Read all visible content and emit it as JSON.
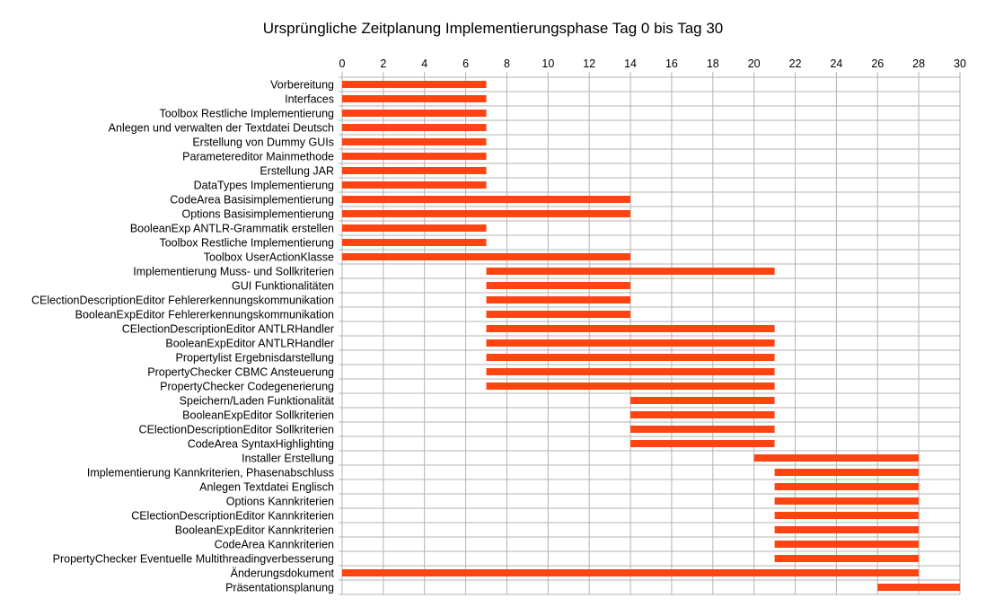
{
  "chart_data": {
    "type": "bar",
    "orientation": "horizontal-gantt",
    "title": "Ursprüngliche Zeitplanung Implementierungsphase Tag 0 bis Tag 30",
    "xlabel": "",
    "ylabel": "",
    "xlim": [
      0,
      30
    ],
    "xticks": [
      0,
      2,
      4,
      6,
      8,
      10,
      12,
      14,
      16,
      18,
      20,
      22,
      24,
      26,
      28,
      30
    ],
    "x_axis_position": "top",
    "grid": true,
    "legend": "none",
    "bar_color": "#ff4411",
    "tasks": [
      {
        "label": "Vorbereitung",
        "start": 0,
        "end": 7
      },
      {
        "label": "Interfaces",
        "start": 0,
        "end": 7
      },
      {
        "label": "Toolbox Restliche Implementierung",
        "start": 0,
        "end": 7
      },
      {
        "label": "Anlegen und verwalten der Textdatei Deutsch",
        "start": 0,
        "end": 7
      },
      {
        "label": "Erstellung von Dummy GUIs",
        "start": 0,
        "end": 7
      },
      {
        "label": "Parametereditor Mainmethode",
        "start": 0,
        "end": 7
      },
      {
        "label": "Erstellung JAR",
        "start": 0,
        "end": 7
      },
      {
        "label": "DataTypes Implementierung",
        "start": 0,
        "end": 7
      },
      {
        "label": "CodeArea Basisimplementierung",
        "start": 0,
        "end": 14
      },
      {
        "label": "Options Basisimplementierung",
        "start": 0,
        "end": 14
      },
      {
        "label": "BooleanExp ANTLR-Grammatik erstellen",
        "start": 0,
        "end": 7
      },
      {
        "label": "Toolbox Restliche Implementierung",
        "start": 0,
        "end": 7
      },
      {
        "label": "Toolbox UserActionKlasse",
        "start": 0,
        "end": 14
      },
      {
        "label": "Implementierung Muss- und Sollkriterien",
        "start": 7,
        "end": 21
      },
      {
        "label": "GUI Funktionalitäten",
        "start": 7,
        "end": 14
      },
      {
        "label": "CElectionDescriptionEditor Fehlererkennungskommunikation",
        "start": 7,
        "end": 14
      },
      {
        "label": "BooleanExpEditor Fehlererkennungskommunikation",
        "start": 7,
        "end": 14
      },
      {
        "label": "CElectionDescriptionEditor ANTLRHandler",
        "start": 7,
        "end": 21
      },
      {
        "label": "BooleanExpEditor ANTLRHandler",
        "start": 7,
        "end": 21
      },
      {
        "label": "Propertylist Ergebnisdarstellung",
        "start": 7,
        "end": 21
      },
      {
        "label": "PropertyChecker CBMC Ansteuerung",
        "start": 7,
        "end": 21
      },
      {
        "label": "PropertyChecker Codegenerierung",
        "start": 7,
        "end": 21
      },
      {
        "label": "Speichern/Laden Funktionalität",
        "start": 14,
        "end": 21
      },
      {
        "label": "BooleanExpEditor Sollkriterien",
        "start": 14,
        "end": 21
      },
      {
        "label": "CElectionDescriptionEditor Sollkriterien",
        "start": 14,
        "end": 21
      },
      {
        "label": "CodeArea SyntaxHighlighting",
        "start": 14,
        "end": 21
      },
      {
        "label": "Installer Erstellung",
        "start": 20,
        "end": 28
      },
      {
        "label": "Implementierung Kannkriterien, Phasenabschluss",
        "start": 21,
        "end": 28
      },
      {
        "label": "Anlegen Textdatei Englisch",
        "start": 21,
        "end": 28
      },
      {
        "label": "Options Kannkriterien",
        "start": 21,
        "end": 28
      },
      {
        "label": "CElectionDescriptionEditor Kannkriterien",
        "start": 21,
        "end": 28
      },
      {
        "label": "BooleanExpEditor Kannkriterien",
        "start": 21,
        "end": 28
      },
      {
        "label": "CodeArea Kannkriterien",
        "start": 21,
        "end": 28
      },
      {
        "label": "PropertyChecker Eventuelle Multithreadingverbesserung",
        "start": 21,
        "end": 28
      },
      {
        "label": "Änderungsdokument",
        "start": 0,
        "end": 28
      },
      {
        "label": "Präsentationsplanung",
        "start": 26,
        "end": 30
      }
    ]
  }
}
